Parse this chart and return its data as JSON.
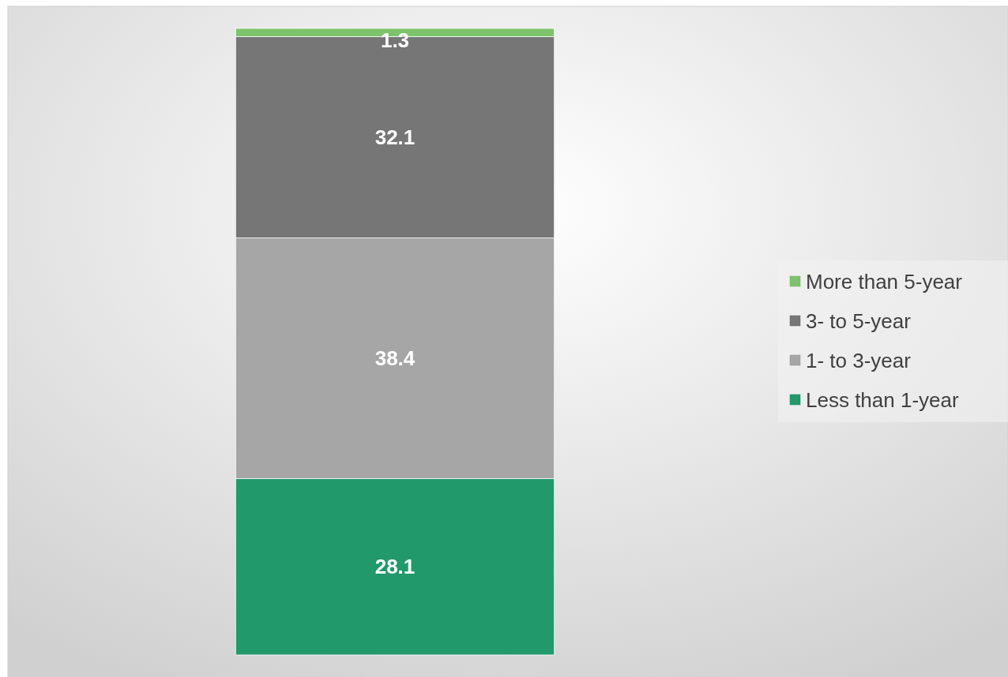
{
  "chart_data": {
    "type": "bar",
    "stacked": true,
    "categories": [
      null
    ],
    "data_labels": true,
    "legend": "right",
    "series": [
      {
        "name": "Less than 1-year",
        "color": "#21996a",
        "values": [
          28.1
        ]
      },
      {
        "name": "1- to 3-year",
        "color": "#a6a6a6",
        "values": [
          38.4
        ]
      },
      {
        "name": "3- to 5-year",
        "color": "#767676",
        "values": [
          32.1
        ]
      },
      {
        "name": "More than 5-year",
        "color": "#7dc36b",
        "values": [
          1.3
        ]
      }
    ]
  }
}
